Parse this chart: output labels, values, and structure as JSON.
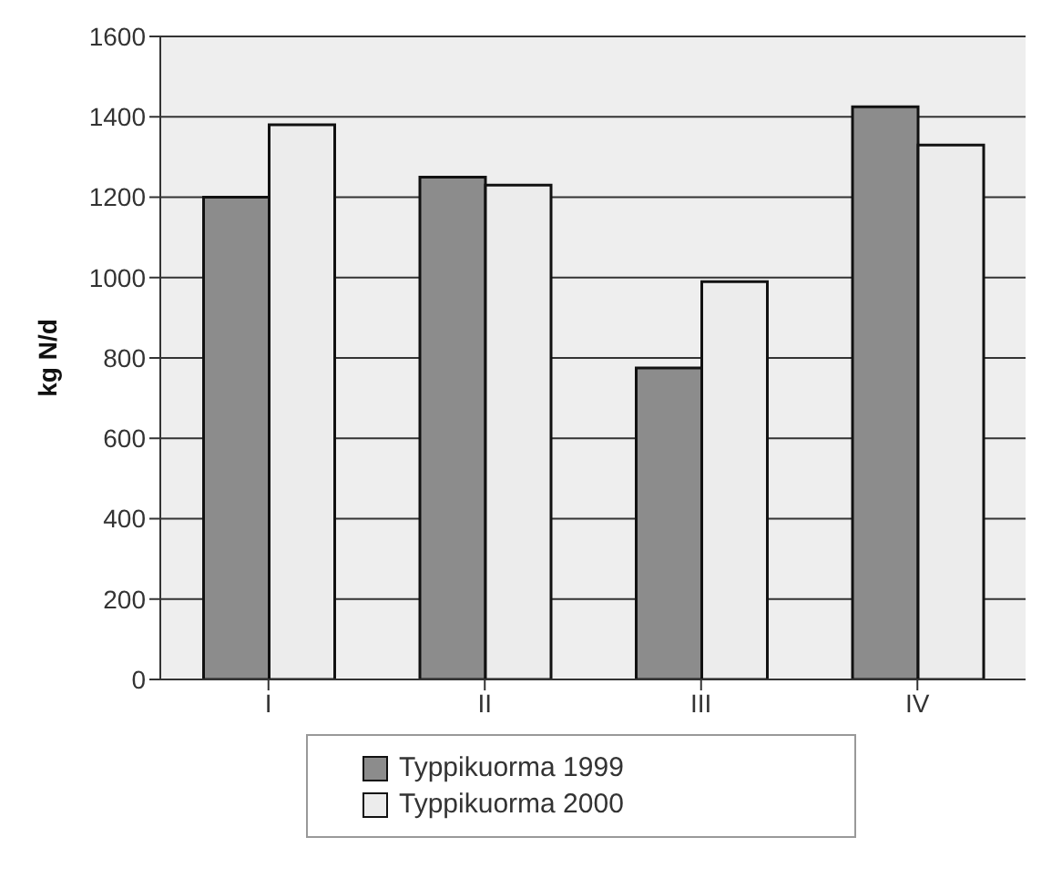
{
  "chart_data": {
    "type": "bar",
    "ylabel": "kg N/d",
    "categories": [
      "I",
      "II",
      "III",
      "IV"
    ],
    "series": [
      {
        "name": "Typpikuorma 1999",
        "color": "#8c8c8c",
        "values": [
          1200,
          1250,
          775,
          1425
        ]
      },
      {
        "name": "Typpikuorma 2000",
        "color": "#ececec",
        "values": [
          1380,
          1230,
          990,
          1330
        ]
      }
    ],
    "ylim": [
      0,
      1600
    ],
    "yticks": [
      0,
      200,
      400,
      600,
      800,
      1000,
      1200,
      1400,
      1600
    ],
    "grid": "y",
    "legend": "bottom"
  }
}
